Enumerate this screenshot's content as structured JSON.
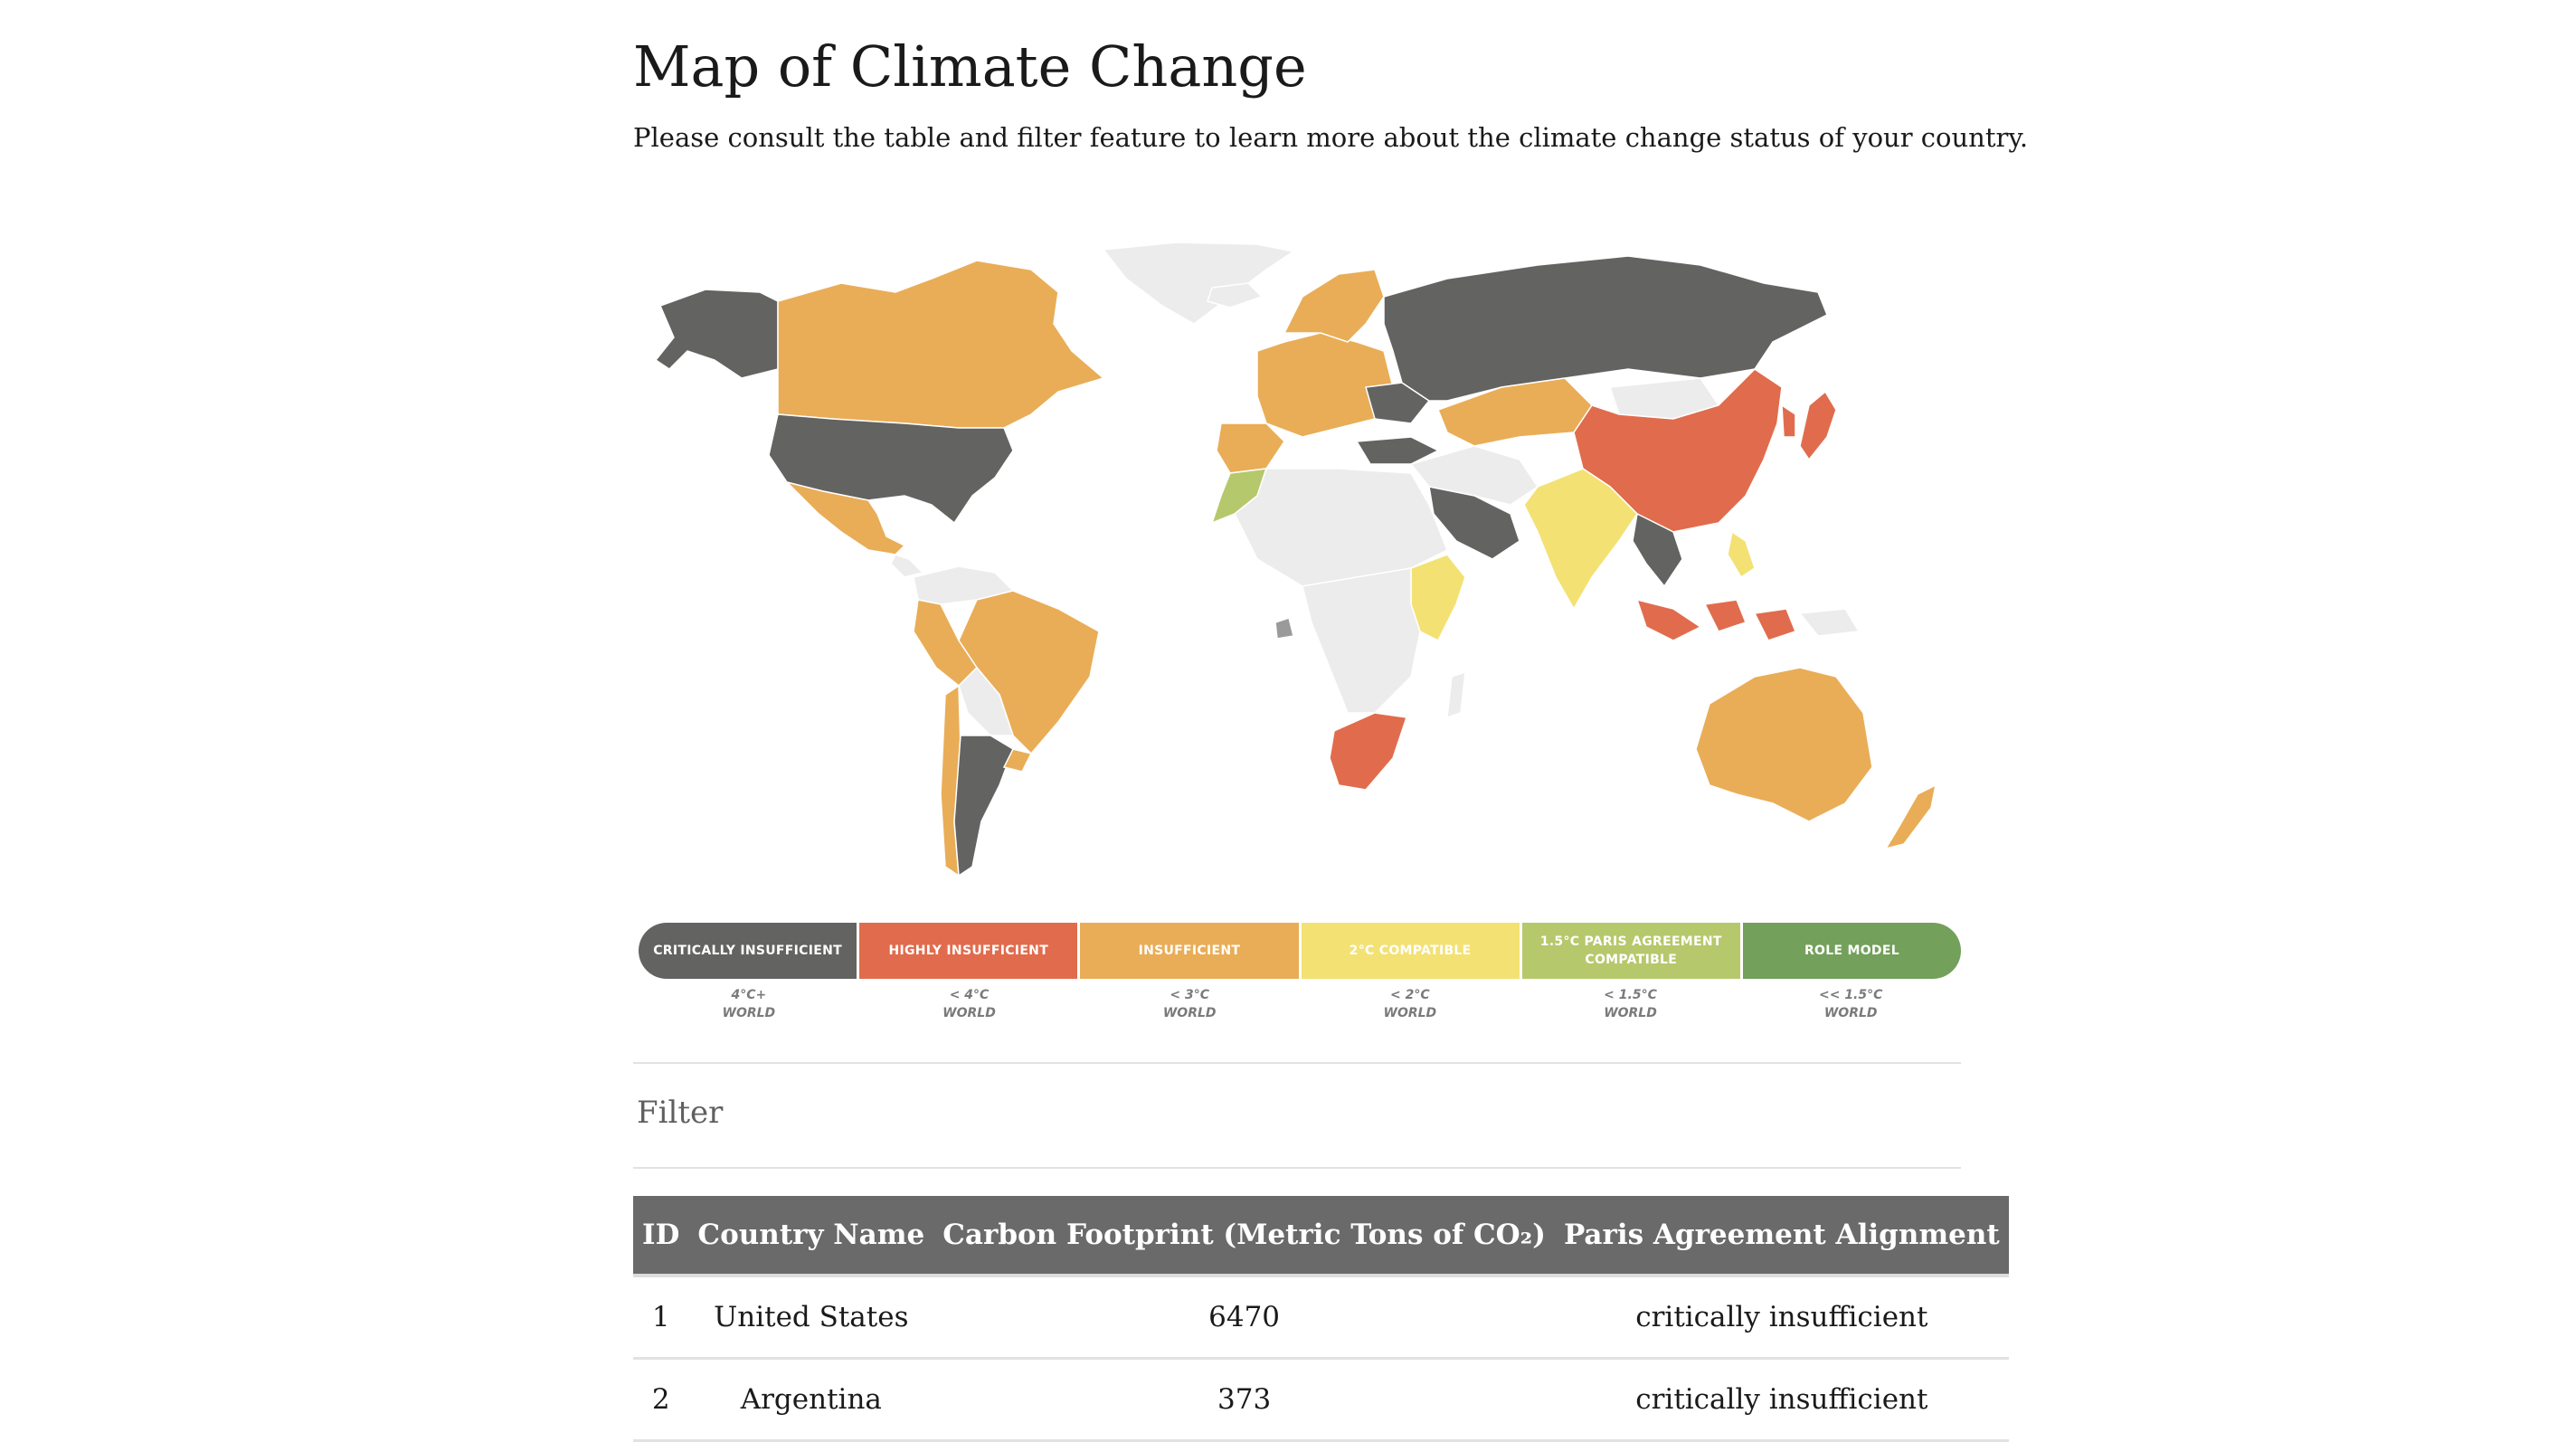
{
  "header": {
    "title": "Map of Climate Change",
    "subtitle": "Please consult the table and filter feature to learn more about the climate change status of your country."
  },
  "colors": {
    "critically_insufficient": "#636362",
    "highly_insufficient": "#e06c4d",
    "insufficient": "#e9ad57",
    "compatible_2c": "#f3e174",
    "compatible_15c": "#b6c86c",
    "role_model": "#73a05a",
    "no_data": "#ececec"
  },
  "legend": {
    "items": [
      {
        "label": "CRITICALLY INSUFFICIENT",
        "sub1": "4°C+",
        "sub2": "WORLD",
        "color": "#636362"
      },
      {
        "label": "HIGHLY INSUFFICIENT",
        "sub1": "< 4°C",
        "sub2": "WORLD",
        "color": "#e06c4d"
      },
      {
        "label": "INSUFFICIENT",
        "sub1": "< 3°C",
        "sub2": "WORLD",
        "color": "#e9ad57"
      },
      {
        "label": "2°C COMPATIBLE",
        "sub1": "< 2°C",
        "sub2": "WORLD",
        "color": "#f3e174"
      },
      {
        "label": "1.5°C PARIS AGREEMENT COMPATIBLE",
        "sub1": "< 1.5°C",
        "sub2": "WORLD",
        "color": "#b6c86c"
      },
      {
        "label": "ROLE MODEL",
        "sub1": "<< 1.5°C",
        "sub2": "WORLD",
        "color": "#73a05a"
      }
    ]
  },
  "filter": {
    "label": "Filter"
  },
  "table": {
    "columns": [
      "ID",
      "Country Name",
      "Carbon Footprint (Metric Tons of CO₂)",
      "Paris Agreement Alignment"
    ],
    "rows": [
      {
        "id": "1",
        "country": "United States",
        "carbon": "6470",
        "alignment": "critically insufficient"
      },
      {
        "id": "2",
        "country": "Argentina",
        "carbon": "373",
        "alignment": "critically insufficient"
      }
    ]
  }
}
